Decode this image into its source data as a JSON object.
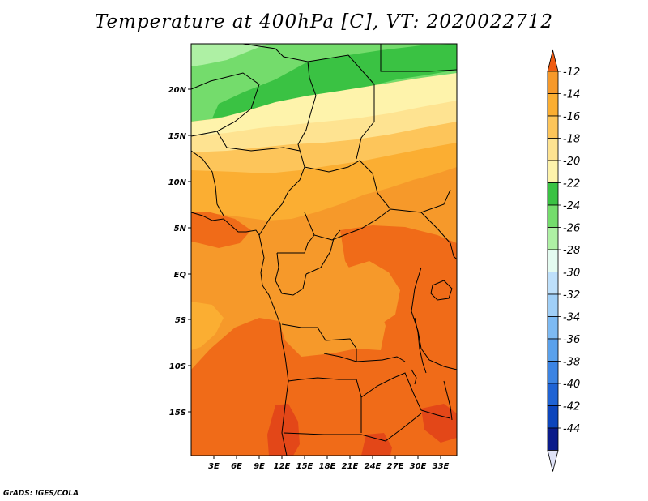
{
  "title": "Temperature at 400hPa [C], VT: 2020022712",
  "credit": "GrADS: IGES/COLA",
  "map": {
    "lat_labels": [
      "20N",
      "15N",
      "10N",
      "5N",
      "EQ",
      "5S",
      "10S",
      "15S"
    ],
    "lon_labels": [
      "3E",
      "6E",
      "9E",
      "12E",
      "15E",
      "18E",
      "21E",
      "24E",
      "27E",
      "30E",
      "33E"
    ],
    "colors": {
      "c_22_20": "#fef3ab",
      "c_20_18": "#fee391",
      "c_18_16": "#fdc55a",
      "c_16_14": "#fbae32",
      "c_14_12": "#f6992a",
      "c_12_10": "#f06b18",
      "c_10_8": "#e34718",
      "g_24_22": "#3ac243",
      "g_26_24": "#74dc6c",
      "g_28_26": "#aef0a4"
    }
  },
  "colorbar": {
    "labels": [
      "-12",
      "-14",
      "-16",
      "-18",
      "-20",
      "-22",
      "-24",
      "-26",
      "-28",
      "-30",
      "-32",
      "-34",
      "-36",
      "-38",
      "-40",
      "-42",
      "-44"
    ],
    "colors": [
      "#f05c12",
      "#f6992a",
      "#fbae32",
      "#fdc55a",
      "#fee391",
      "#fef3ab",
      "#3ac243",
      "#74dc6c",
      "#aef0a4",
      "#e4fbf0",
      "#bee0fb",
      "#a0cff7",
      "#7dbaf3",
      "#5aa1ec",
      "#3c84e3",
      "#1f63d4",
      "#0c45bc",
      "#0a1b8a",
      "#dfe2f7"
    ],
    "top_arrow_color": "#f05c12",
    "bottom_arrow_color": "#dfe2f7"
  }
}
